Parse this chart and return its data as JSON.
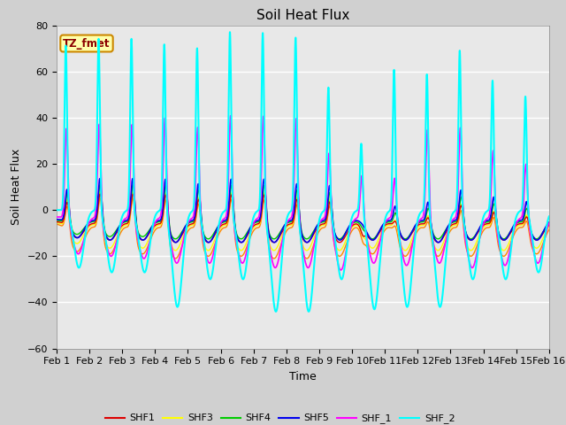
{
  "title": "Soil Heat Flux",
  "xlabel": "Time",
  "ylabel": "Soil Heat Flux",
  "xlim": [
    0,
    15
  ],
  "ylim": [
    -60,
    80
  ],
  "yticks": [
    -60,
    -40,
    -20,
    0,
    20,
    40,
    60,
    80
  ],
  "xtick_labels": [
    "Feb 1",
    "Feb 2",
    "Feb 3",
    "Feb 4",
    "Feb 5",
    "Feb 6",
    "Feb 7",
    "Feb 8",
    "Feb 9",
    "Feb 10",
    "Feb 11",
    "Feb 12",
    "Feb 13",
    "Feb 14",
    "Feb 15",
    "Feb 16"
  ],
  "fig_bg": "#d0d0d0",
  "plot_bg": "#e8e8e8",
  "grid_color": "#ffffff",
  "series_colors": {
    "SHF1": "#dd0000",
    "SHF2": "#ff8800",
    "SHF3": "#ffff00",
    "SHF4": "#00cc00",
    "SHF5": "#0000ee",
    "SHF_1": "#ff00ff",
    "SHF_2": "#00ffff"
  },
  "legend_label": "TZ_fmet",
  "annotation_color": "#8B0000",
  "annotation_bg": "#ffffaa",
  "annotation_edge": "#cc8800"
}
